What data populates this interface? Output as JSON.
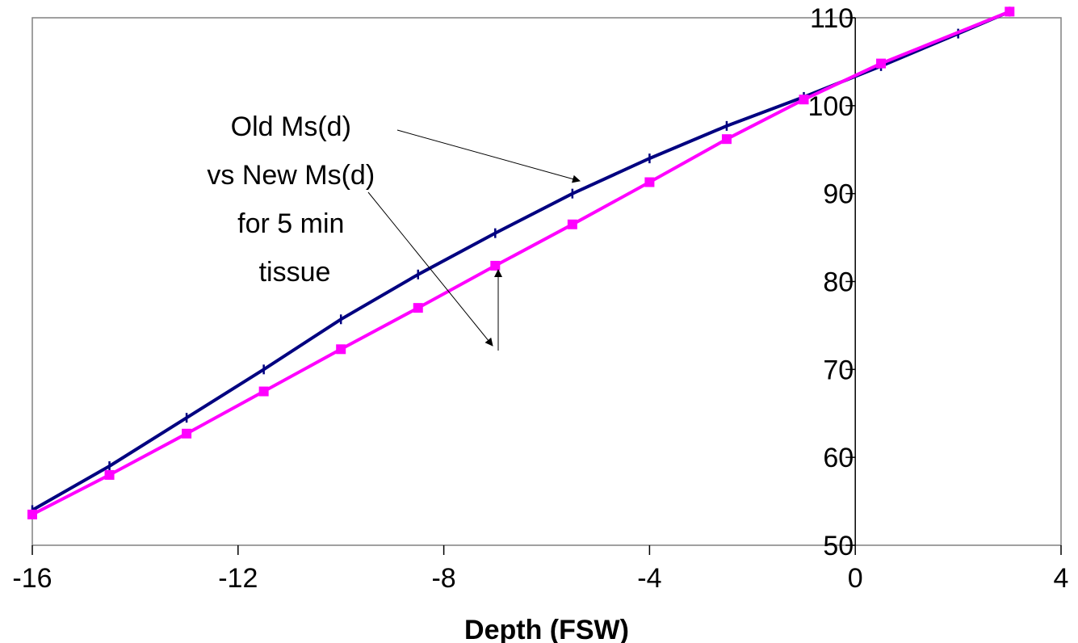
{
  "chart_data": {
    "type": "line",
    "title": "",
    "xlabel": "Depth (FSW)",
    "ylabel": "",
    "xlim": [
      -16,
      4
    ],
    "ylim": [
      50,
      110
    ],
    "x_ticks": [
      "-16",
      "-12",
      "-8",
      "-4",
      "0",
      "4"
    ],
    "y_ticks": [
      "50",
      "60",
      "70",
      "80",
      "90",
      "100",
      "110"
    ],
    "grid": false,
    "legend": "none",
    "annotation": [
      "Old Ms(d)",
      "vs New Ms(d)",
      "for 5 min",
      "tissue"
    ],
    "series": [
      {
        "color": "#000080",
        "marker": "tick",
        "x": [
          -16,
          -14.5,
          -13,
          -11.5,
          -10,
          -8.5,
          -7,
          -5.5,
          -4,
          -2.5,
          -1,
          0.5,
          2,
          3
        ],
        "y": [
          54,
          59,
          64.5,
          70,
          75.7,
          80.8,
          85.5,
          90,
          94,
          97.7,
          101,
          104.5,
          108.2,
          110.7
        ]
      },
      {
        "color": "#ff00ff",
        "marker": "square",
        "x": [
          -16,
          -14.5,
          -13,
          -11.5,
          -10,
          -8.5,
          -7,
          -5.5,
          -4,
          -2.5,
          -1,
          0.5,
          3
        ],
        "y": [
          53.5,
          58,
          62.7,
          67.5,
          72.3,
          77,
          81.8,
          86.5,
          91.3,
          96.2,
          100.7,
          104.8,
          110.7
        ]
      }
    ]
  }
}
